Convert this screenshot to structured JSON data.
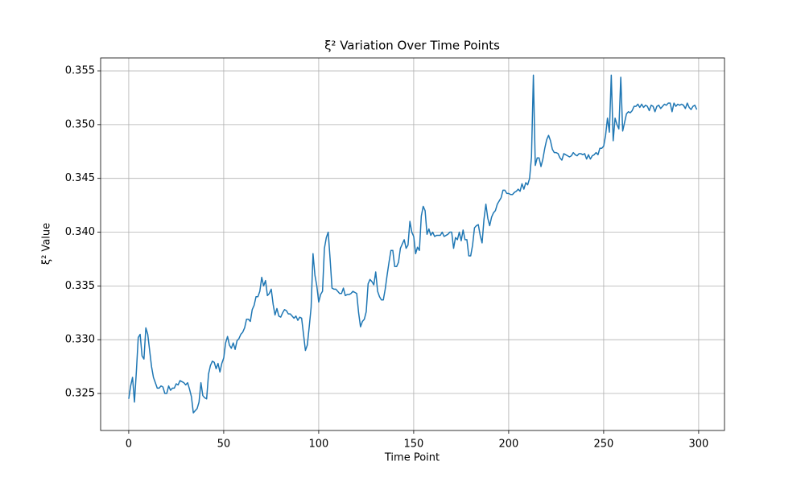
{
  "chart_data": {
    "type": "line",
    "title": "ξ² Variation Over Time Points",
    "x_label": "Time Point",
    "y_label": "ξ² Value",
    "x": [
      0,
      1,
      2,
      3,
      4,
      5,
      6,
      7,
      8,
      9,
      10,
      11,
      12,
      13,
      14,
      15,
      16,
      17,
      18,
      19,
      20,
      21,
      22,
      23,
      24,
      25,
      26,
      27,
      28,
      29,
      30,
      31,
      32,
      33,
      34,
      35,
      36,
      37,
      38,
      39,
      40,
      41,
      42,
      43,
      44,
      45,
      46,
      47,
      48,
      49,
      50,
      51,
      52,
      53,
      54,
      55,
      56,
      57,
      58,
      59,
      60,
      61,
      62,
      63,
      64,
      65,
      66,
      67,
      68,
      69,
      70,
      71,
      72,
      73,
      74,
      75,
      76,
      77,
      78,
      79,
      80,
      81,
      82,
      83,
      84,
      85,
      86,
      87,
      88,
      89,
      90,
      91,
      92,
      93,
      94,
      95,
      96,
      97,
      98,
      99,
      100,
      101,
      102,
      103,
      104,
      105,
      106,
      107,
      108,
      109,
      110,
      111,
      112,
      113,
      114,
      115,
      116,
      117,
      118,
      119,
      120,
      121,
      122,
      123,
      124,
      125,
      126,
      127,
      128,
      129,
      130,
      131,
      132,
      133,
      134,
      135,
      136,
      137,
      138,
      139,
      140,
      141,
      142,
      143,
      144,
      145,
      146,
      147,
      148,
      149,
      150,
      151,
      152,
      153,
      154,
      155,
      156,
      157,
      158,
      159,
      160,
      161,
      162,
      163,
      164,
      165,
      166,
      167,
      168,
      169,
      170,
      171,
      172,
      173,
      174,
      175,
      176,
      177,
      178,
      179,
      180,
      181,
      182,
      183,
      184,
      185,
      186,
      187,
      188,
      189,
      190,
      191,
      192,
      193,
      194,
      195,
      196,
      197,
      198,
      199,
      200,
      201,
      202,
      203,
      204,
      205,
      206,
      207,
      208,
      209,
      210,
      211,
      212,
      213,
      214,
      215,
      216,
      217,
      218,
      219,
      220,
      221,
      222,
      223,
      224,
      225,
      226,
      227,
      228,
      229,
      230,
      231,
      232,
      233,
      234,
      235,
      236,
      237,
      238,
      239,
      240,
      241,
      242,
      243,
      244,
      245,
      246,
      247,
      248,
      249,
      250,
      251,
      252,
      253,
      254,
      255,
      256,
      257,
      258,
      259,
      260,
      261,
      262,
      263,
      264,
      265,
      266,
      267,
      268,
      269,
      270,
      271,
      272,
      273,
      274,
      275,
      276,
      277,
      278,
      279,
      280,
      281,
      282,
      283,
      284,
      285,
      286,
      287,
      288,
      289,
      290,
      291,
      292,
      293,
      294,
      295,
      296,
      297,
      298,
      299
    ],
    "series": [
      {
        "color": "#1f77b4",
        "values": [
          0.3245,
          0.3257,
          0.3265,
          0.3242,
          0.327,
          0.3302,
          0.3305,
          0.3285,
          0.3282,
          0.3311,
          0.3305,
          0.329,
          0.3275,
          0.3265,
          0.326,
          0.3255,
          0.3255,
          0.3257,
          0.3256,
          0.325,
          0.325,
          0.3257,
          0.3253,
          0.3255,
          0.3255,
          0.3259,
          0.3258,
          0.3262,
          0.3261,
          0.326,
          0.3258,
          0.326,
          0.3254,
          0.3247,
          0.3232,
          0.3234,
          0.3236,
          0.3242,
          0.326,
          0.3248,
          0.3246,
          0.3245,
          0.3268,
          0.3276,
          0.328,
          0.3279,
          0.3273,
          0.3278,
          0.327,
          0.3278,
          0.3283,
          0.3297,
          0.3303,
          0.3295,
          0.3292,
          0.3297,
          0.3291,
          0.3299,
          0.3301,
          0.3305,
          0.3307,
          0.3311,
          0.3319,
          0.3319,
          0.3317,
          0.3328,
          0.3332,
          0.334,
          0.334,
          0.3345,
          0.3358,
          0.335,
          0.3355,
          0.3341,
          0.3343,
          0.3347,
          0.3333,
          0.3323,
          0.3329,
          0.3322,
          0.3321,
          0.3325,
          0.3328,
          0.3327,
          0.3324,
          0.3324,
          0.3322,
          0.332,
          0.3322,
          0.3318,
          0.3321,
          0.332,
          0.3305,
          0.329,
          0.3295,
          0.3312,
          0.333,
          0.338,
          0.336,
          0.335,
          0.3335,
          0.3342,
          0.3345,
          0.3385,
          0.3395,
          0.34,
          0.3375,
          0.3348,
          0.3347,
          0.3347,
          0.3345,
          0.3343,
          0.3343,
          0.3348,
          0.3341,
          0.3342,
          0.3342,
          0.3343,
          0.3345,
          0.3344,
          0.3343,
          0.3325,
          0.3312,
          0.3317,
          0.3319,
          0.3326,
          0.3352,
          0.3356,
          0.3354,
          0.3351,
          0.3363,
          0.3345,
          0.334,
          0.3337,
          0.3337,
          0.3347,
          0.336,
          0.3372,
          0.3383,
          0.3383,
          0.3368,
          0.3368,
          0.3372,
          0.3385,
          0.3389,
          0.3393,
          0.3385,
          0.3388,
          0.341,
          0.34,
          0.3396,
          0.338,
          0.3386,
          0.3383,
          0.3415,
          0.3424,
          0.342,
          0.3398,
          0.3403,
          0.3397,
          0.34,
          0.3396,
          0.3397,
          0.3397,
          0.3397,
          0.34,
          0.3396,
          0.3397,
          0.3398,
          0.34,
          0.34,
          0.3385,
          0.3395,
          0.3393,
          0.34,
          0.3392,
          0.3402,
          0.3393,
          0.3393,
          0.3378,
          0.3378,
          0.3388,
          0.3404,
          0.3406,
          0.3407,
          0.3397,
          0.339,
          0.3412,
          0.3426,
          0.3413,
          0.3406,
          0.3414,
          0.3418,
          0.342,
          0.3426,
          0.3429,
          0.3432,
          0.3439,
          0.3439,
          0.3436,
          0.3436,
          0.3435,
          0.3435,
          0.3437,
          0.3438,
          0.344,
          0.3438,
          0.3445,
          0.344,
          0.3446,
          0.3444,
          0.345,
          0.347,
          0.3546,
          0.3462,
          0.3469,
          0.3469,
          0.3461,
          0.3468,
          0.3478,
          0.3486,
          0.349,
          0.3485,
          0.3477,
          0.3474,
          0.3474,
          0.3473,
          0.3469,
          0.3467,
          0.3473,
          0.3472,
          0.3471,
          0.347,
          0.3471,
          0.3474,
          0.3472,
          0.3471,
          0.3473,
          0.3473,
          0.3472,
          0.3473,
          0.3468,
          0.3472,
          0.3468,
          0.3471,
          0.3472,
          0.3474,
          0.3472,
          0.3478,
          0.3478,
          0.348,
          0.349,
          0.3506,
          0.3493,
          0.3546,
          0.3485,
          0.3506,
          0.35,
          0.3496,
          0.3544,
          0.3494,
          0.3502,
          0.351,
          0.3512,
          0.3511,
          0.3513,
          0.3517,
          0.3517,
          0.3519,
          0.3516,
          0.3519,
          0.3516,
          0.3518,
          0.3517,
          0.3513,
          0.3518,
          0.3517,
          0.3512,
          0.3517,
          0.3518,
          0.3515,
          0.3517,
          0.3519,
          0.3518,
          0.352,
          0.352,
          0.3512,
          0.352,
          0.3517,
          0.3519,
          0.3518,
          0.3519,
          0.3518,
          0.3515,
          0.352,
          0.3516,
          0.3514,
          0.3517,
          0.3518,
          0.3514
        ]
      }
    ],
    "xlim": [
      -14.8,
      313.6
    ],
    "ylim": [
      0.32156,
      0.3562
    ],
    "xticks": [
      0,
      50,
      100,
      150,
      200,
      250,
      300
    ],
    "yticks": [
      0.325,
      {
        "value": 0.33,
        "label": "0.330"
      },
      0.335,
      {
        "value": 0.34,
        "label": "0.340"
      },
      0.345,
      {
        "value": 0.35,
        "label": "0.350"
      },
      0.355
    ],
    "grid": true
  }
}
